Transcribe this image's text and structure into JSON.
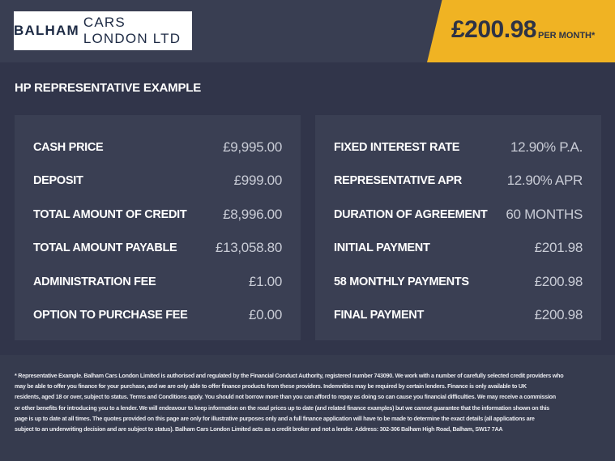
{
  "header": {
    "logo_bold": "BALHAM",
    "logo_rest": "CARS LONDON LTD",
    "monthly_price": "£200.98",
    "per_month_label": "PER MONTH*",
    "accent_color": "#f0b323"
  },
  "section_title": "HP REPRESENTATIVE EXAMPLE",
  "left_panel": [
    {
      "label": "CASH PRICE",
      "value": "£9,995.00"
    },
    {
      "label": "DEPOSIT",
      "value": "£999.00"
    },
    {
      "label": "TOTAL AMOUNT OF CREDIT",
      "value": "£8,996.00"
    },
    {
      "label": "TOTAL AMOUNT PAYABLE",
      "value": "£13,058.80"
    },
    {
      "label": "ADMINISTRATION FEE",
      "value": "£1.00"
    },
    {
      "label": "OPTION TO PURCHASE FEE",
      "value": "£0.00"
    }
  ],
  "right_panel": [
    {
      "label": "FIXED INTEREST RATE",
      "value": "12.90% P.A."
    },
    {
      "label": "REPRESENTATIVE APR",
      "value": "12.90% APR"
    },
    {
      "label": "DURATION OF AGREEMENT",
      "value": "60 MONTHS"
    },
    {
      "label": "INITIAL PAYMENT",
      "value": "£201.98"
    },
    {
      "label": "58 MONTHLY PAYMENTS",
      "value": "£200.98"
    },
    {
      "label": "FINAL PAYMENT",
      "value": "£200.98"
    }
  ],
  "disclaimer_lines": [
    "* Representative Example. Balham Cars London Limited is authorised and regulated by the Financial Conduct Authority, registered number 743090. We work with a number of carefully selected credit providers who",
    "may be able to offer you finance for your purchase, and we are only able to offer finance products from these providers. Indemnities may be required by certain lenders. Finance is only available to UK",
    "residents, aged 18 or over, subject to status. Terms and Conditions apply. You should not borrow more than you can afford to repay as doing so can cause you financial difficulties. We may receive a commission",
    "or other benefits for introducing you to a lender. We will endeavour to keep information on the road prices up to date (and related finance examples) but we cannot guarantee that the information shown on this",
    "page is up to date at all times. The quotes provided on this page are only for illustrative purposes only and a full finance application will have to be made to determine the exact details (all applications are",
    "subject to an underwriting decision and are subject to status). Balham Cars London Limited acts as a credit broker and not a lender. Address:  302-306 Balham High Road, Balham, SW17 7AA"
  ]
}
